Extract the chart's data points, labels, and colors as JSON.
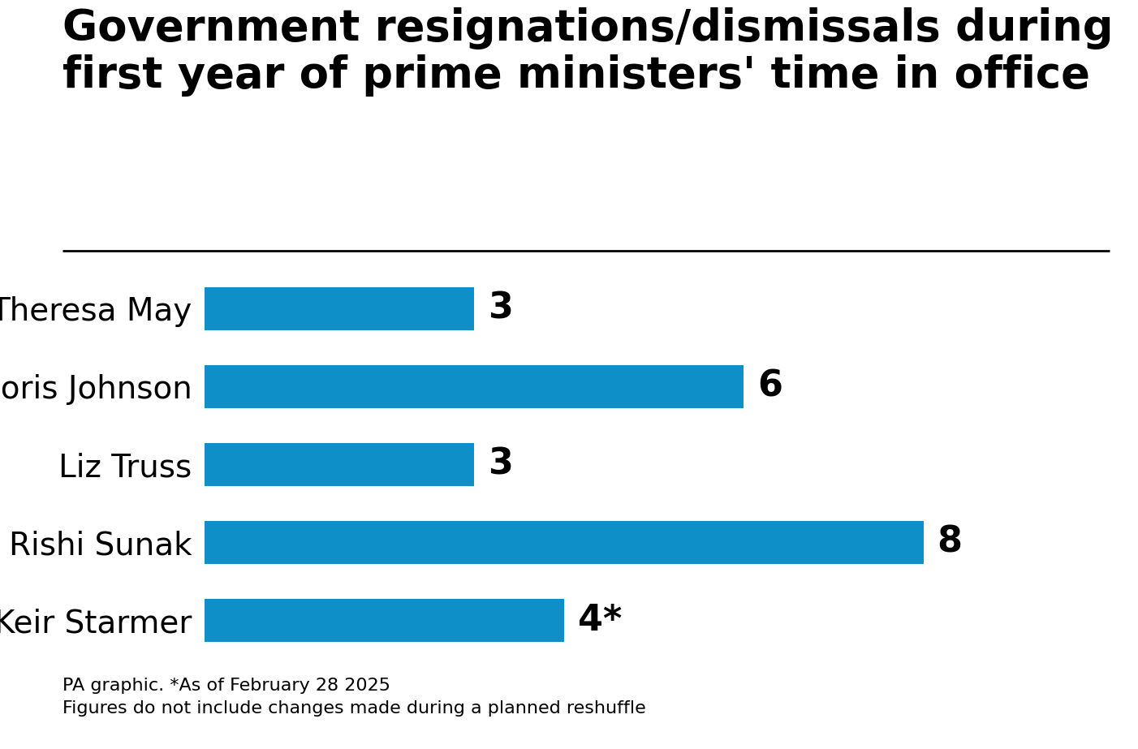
{
  "title_line1": "Government resignations/dismissals during",
  "title_line2": "first year of prime ministers' time in office",
  "categories": [
    "Theresa May",
    "Boris Johnson",
    "Liz Truss",
    "Rishi Sunak",
    "Sir Keir Starmer"
  ],
  "values": [
    3,
    6,
    3,
    8,
    4
  ],
  "labels": [
    "3",
    "6",
    "3",
    "8",
    "4*"
  ],
  "bar_color": "#0e8fc7",
  "background_color": "#ffffff",
  "title_fontsize": 38,
  "label_fontsize": 32,
  "category_fontsize": 28,
  "footnote_line1": "PA graphic. *As of February 28 2025",
  "footnote_line2": "Figures do not include changes made during a planned reshuffle",
  "footnote_fontsize": 16,
  "xlim": [
    0,
    9.5
  ]
}
